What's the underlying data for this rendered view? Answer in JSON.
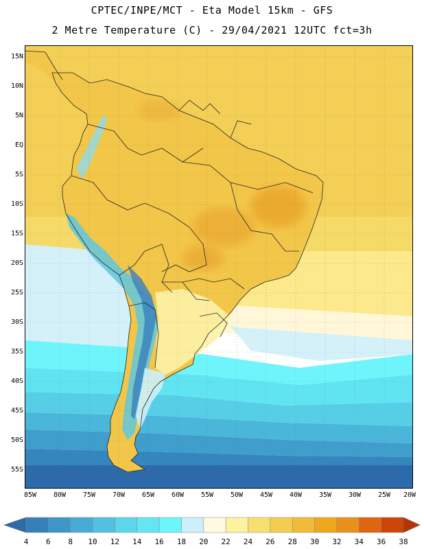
{
  "title": {
    "line1": "CPTEC/INPE/MCT -  Eta Model 15km - GFS",
    "line2": "2 Metre Temperature (C) - 29/04/2021 12UTC fct=3h"
  },
  "map": {
    "lat_labels": [
      "15N",
      "10N",
      "5N",
      "EQ",
      "5S",
      "10S",
      "15S",
      "20S",
      "25S",
      "30S",
      "35S",
      "40S",
      "45S",
      "50S",
      "55S"
    ],
    "lon_labels": [
      "85W",
      "80W",
      "75W",
      "70W",
      "65W",
      "60W",
      "55W",
      "50W",
      "45W",
      "40W",
      "35W",
      "30W",
      "25W",
      "20W"
    ]
  },
  "legend": {
    "values": [
      "4",
      "6",
      "8",
      "10",
      "12",
      "14",
      "16",
      "18",
      "20",
      "22",
      "24",
      "26",
      "28",
      "30",
      "32",
      "34",
      "36",
      "38"
    ],
    "colors": [
      "#2c6ba8",
      "#3580b8",
      "#3e96c8",
      "#47abd6",
      "#52c0e0",
      "#5cd6ea",
      "#62e6f2",
      "#6cf6fb",
      "#cdeffa",
      "#fff9e2",
      "#fdf2a0",
      "#f8e070",
      "#f4cc50",
      "#efbb38",
      "#eda81e",
      "#e8901a",
      "#e06510",
      "#cc4408",
      "#b63305"
    ]
  },
  "colors": {
    "sea_warm": "#f3cf56",
    "sea_deep": "#2d65a5",
    "land_dark": "#efb43b"
  }
}
